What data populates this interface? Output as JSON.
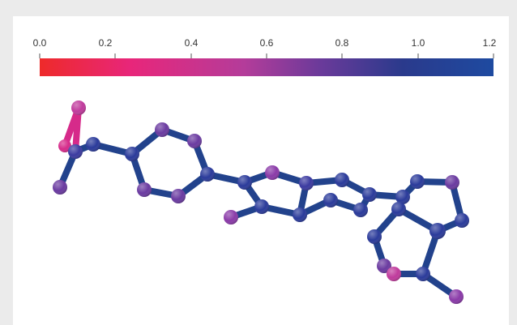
{
  "colorbar": {
    "ticks": [
      "0.0",
      "0.2",
      "0.4",
      "0.6",
      "0.8",
      "1.0",
      "1.2"
    ],
    "min": 0.0,
    "max": 1.2,
    "gradient_colors": [
      "#ee2a2a",
      "#e8267a",
      "#b43c9a",
      "#6a3a9a",
      "#2a3a8c",
      "#1e4aa0"
    ]
  },
  "molecule": {
    "node_colors": {
      "blue": "#2a3a9a",
      "indigo": "#3b3aa0",
      "purple": "#6a3aa0",
      "violet": "#8a3aa8",
      "magenta": "#c03a9c",
      "pink": "#d62a8a"
    },
    "bond_colors": {
      "blue": "#22428c",
      "pink": "#d62a8a"
    }
  }
}
